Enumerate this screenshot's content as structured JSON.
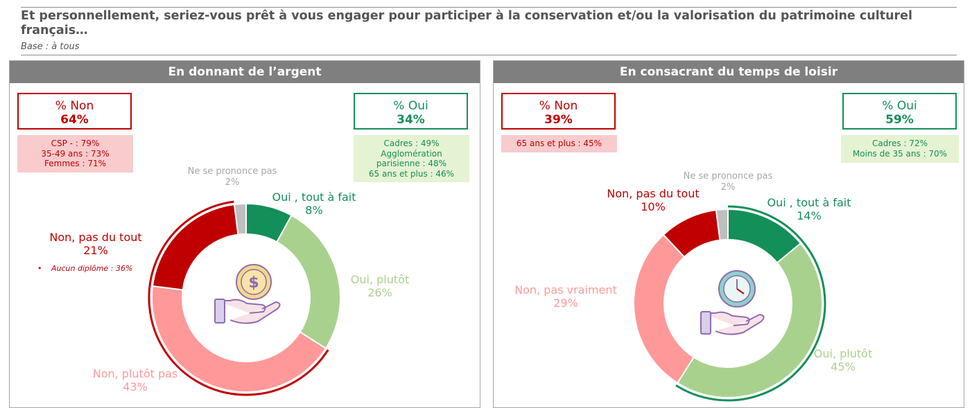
{
  "question": "Et personnellement, seriez-vous prêt à vous engager pour participer à la conservation et/ou la valorisation du patrimoine culturel français…",
  "base": "Base : à tous",
  "colors": {
    "oui_tout_a_fait": "#138f59",
    "oui_plutot": "#a9d18e",
    "non_plutot_pas": "#ff9999",
    "non_pas_du_tout": "#c00000",
    "nspp": "#bfbfbf"
  },
  "panels": [
    {
      "title": "En donnant de l’argent",
      "icon": "money-hand-icon",
      "non": {
        "label": "% Non",
        "value": "64%",
        "details": [
          "CSP - : 79%",
          "35-49 ans : 73%",
          "Femmes : 71%"
        ]
      },
      "oui": {
        "label": "% Oui",
        "value": "34%",
        "details": [
          "Cadres : 49%",
          "Agglomération",
          "parisienne : 48%",
          "65 ans et plus : 46%"
        ]
      },
      "labels": {
        "nspp": {
          "name": "Ne se prononce pas",
          "value": "2%"
        },
        "oui_tout_a_fait": {
          "name": "Oui , tout à fait",
          "value": "8%"
        },
        "oui_plutot": {
          "name": "Oui, plutôt",
          "value": "26%"
        },
        "non_plutot_pas": {
          "name": "Non, plutôt pas",
          "value": "43%"
        },
        "non_pas_du_tout": {
          "name": "Non, pas du tout",
          "value": "21%"
        }
      },
      "note": "Aucun diplôme : 36%"
    },
    {
      "title": "En consacrant du temps de loisir",
      "icon": "clock-hand-icon",
      "non": {
        "label": "% Non",
        "value": "39%",
        "details": [
          "65 ans et plus : 45%"
        ]
      },
      "oui": {
        "label": "% Oui",
        "value": "59%",
        "details": [
          "Cadres : 72%",
          "Moins de 35 ans : 70%"
        ]
      },
      "labels": {
        "nspp": {
          "name": "Ne se prononce pas",
          "value": "2%"
        },
        "oui_tout_a_fait": {
          "name": "Oui , tout à fait",
          "value": "14%"
        },
        "oui_plutot": {
          "name": "Oui, plutôt",
          "value": "45%"
        },
        "non_plutot_pas": {
          "name": "Non, pas vraiment",
          "value": "29%"
        },
        "non_pas_du_tout": {
          "name": "Non, pas du tout",
          "value": "10%"
        }
      }
    }
  ],
  "chart_data": [
    {
      "type": "pie",
      "title": "En donnant de l’argent",
      "categories": [
        "Oui , tout à fait",
        "Oui, plutôt",
        "Non, plutôt pas",
        "Non, pas du tout",
        "Ne se prononce pas"
      ],
      "values": [
        8,
        26,
        43,
        21,
        2
      ],
      "unit": "%"
    },
    {
      "type": "pie",
      "title": "En consacrant du temps de loisir",
      "categories": [
        "Oui , tout à fait",
        "Oui, plutôt",
        "Non, pas vraiment",
        "Non, pas du tout",
        "Ne se prononce pas"
      ],
      "values": [
        14,
        45,
        29,
        10,
        2
      ],
      "unit": "%"
    }
  ]
}
